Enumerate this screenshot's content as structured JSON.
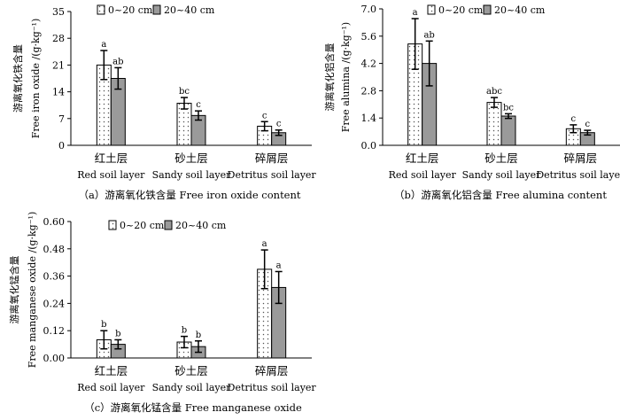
{
  "chart_data": [
    {
      "type": "bar",
      "panel": "a",
      "ylabel_zh": "游离氧化铁含量",
      "ylabel_en": "Free iron oxide /(g·kg⁻¹)",
      "caption": "（a）游离氧化铁含量 Free  iron oxide content",
      "ylim": [
        0,
        35
      ],
      "yticks": [
        "0",
        "7",
        "14",
        "21",
        "28",
        "35"
      ],
      "categories_zh": [
        "红土层",
        "砂土层",
        "碎屑层"
      ],
      "categories_en": [
        "Red soil layer",
        "Sandy soil layer",
        "Detritus soil layer"
      ],
      "series": [
        {
          "name": "0~20 cm",
          "values": [
            21.0,
            11.0,
            5.0
          ],
          "errors": [
            3.8,
            1.5,
            1.2
          ],
          "sig": [
            "a",
            "bc",
            "c"
          ]
        },
        {
          "name": "20~40 cm",
          "values": [
            17.5,
            7.8,
            3.3
          ],
          "errors": [
            2.8,
            1.2,
            0.7
          ],
          "sig": [
            "ab",
            "c",
            "c"
          ]
        }
      ]
    },
    {
      "type": "bar",
      "panel": "b",
      "ylabel_zh": "游离氧化铝含量",
      "ylabel_en": "Free alumina /(g·kg⁻¹)",
      "caption": "（b）游离氧化铝含量 Free alumina content",
      "ylim": [
        0,
        7
      ],
      "yticks": [
        "0.0",
        "1.4",
        "2.8",
        "4.2",
        "5.6",
        "7.0"
      ],
      "categories_zh": [
        "红土层",
        "砂土层",
        "碎屑层"
      ],
      "categories_en": [
        "Red soil layer",
        "Sandy soil layer",
        "Detritus soil layer"
      ],
      "series": [
        {
          "name": "0~20 cm",
          "values": [
            5.2,
            2.2,
            0.85
          ],
          "errors": [
            1.3,
            0.25,
            0.2
          ],
          "sig": [
            "a",
            "abc",
            "c"
          ]
        },
        {
          "name": "20~40 cm",
          "values": [
            4.2,
            1.5,
            0.65
          ],
          "errors": [
            1.15,
            0.12,
            0.12
          ],
          "sig": [
            "ab",
            "bc",
            "c"
          ]
        }
      ]
    },
    {
      "type": "bar",
      "panel": "c",
      "ylabel_zh": "游离氧化锰含量",
      "ylabel_en": "Free manganese oxide /(g·kg⁻¹)",
      "caption": "（c）游离氧化锰含量 Free manganese oxide",
      "ylim": [
        0,
        0.6
      ],
      "yticks": [
        "0.00",
        "0.12",
        "0.24",
        "0.36",
        "0.48",
        "0.60"
      ],
      "categories_zh": [
        "红土层",
        "砂土层",
        "碎屑层"
      ],
      "categories_en": [
        "Red soil layer",
        "Sandy soil layer",
        "Detritus soil layer"
      ],
      "series": [
        {
          "name": "0~20 cm",
          "values": [
            0.08,
            0.07,
            0.39
          ],
          "errors": [
            0.04,
            0.025,
            0.085
          ],
          "sig": [
            "b",
            "b",
            "a"
          ]
        },
        {
          "name": "20~40 cm",
          "values": [
            0.06,
            0.05,
            0.31
          ],
          "errors": [
            0.02,
            0.025,
            0.07
          ],
          "sig": [
            "b",
            "b",
            "a"
          ]
        }
      ]
    }
  ],
  "legend": {
    "series1": "0~20 cm",
    "series2": "20~40 cm"
  },
  "colors": {
    "series1_fill": "#ffffff",
    "series2_fill": "#9a9a9a",
    "dots": "#555555",
    "axis": "#000000"
  }
}
